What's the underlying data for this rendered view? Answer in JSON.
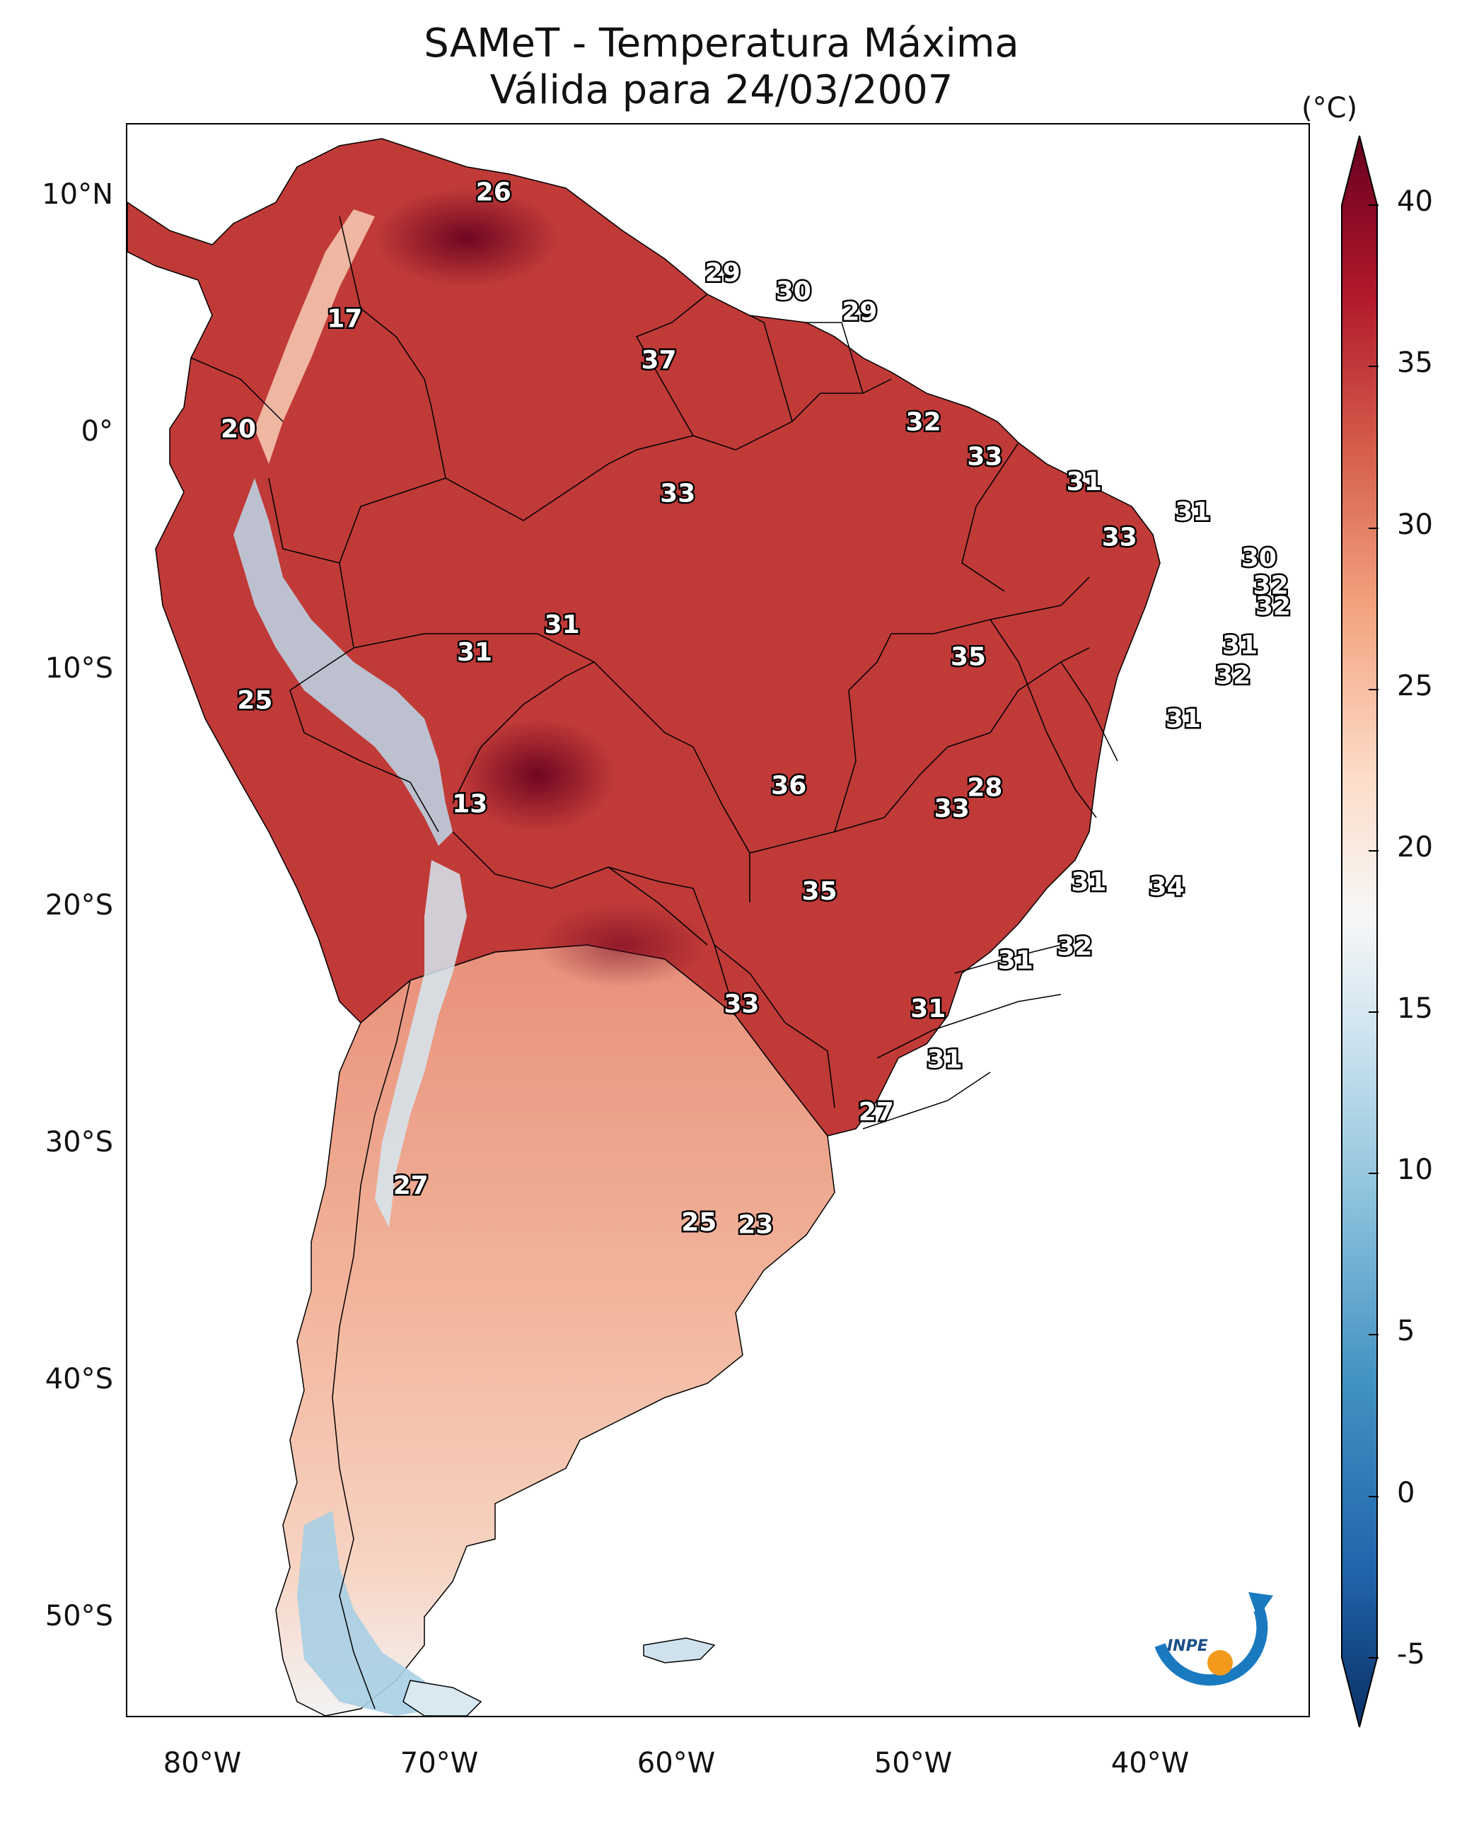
{
  "title": {
    "line1": "SAMeT - Temperatura Máxima",
    "line2": "Válida para 24/03/2007"
  },
  "axes": {
    "lat_labels": [
      "10°N",
      "0°",
      "10°S",
      "20°S",
      "30°S",
      "40°S",
      "50°S"
    ],
    "lon_labels": [
      "80°W",
      "70°W",
      "60°W",
      "50°W",
      "40°W"
    ]
  },
  "colorbar": {
    "unit": "(°C)",
    "ticks": [
      "40",
      "35",
      "30",
      "25",
      "20",
      "15",
      "10",
      "5",
      "0",
      "-5"
    ],
    "range": [
      -5,
      40
    ],
    "colors_low_to_high": [
      "#0a2f66",
      "#2166ac",
      "#4393c3",
      "#92c5de",
      "#d1e5f0",
      "#f7f7f7",
      "#fddbc7",
      "#f4a582",
      "#d6604d",
      "#b2182b",
      "#67001f"
    ]
  },
  "map_labels": [
    {
      "text": "26",
      "lon": -67.5,
      "lat": 10.0
    },
    {
      "text": "17",
      "lon": -73.8,
      "lat": 4.5
    },
    {
      "text": "29",
      "lon": -57.8,
      "lat": 6.5
    },
    {
      "text": "30",
      "lon": -54.8,
      "lat": 5.7
    },
    {
      "text": "29",
      "lon": -52.0,
      "lat": 4.8
    },
    {
      "text": "37",
      "lon": -60.5,
      "lat": 2.7
    },
    {
      "text": "20",
      "lon": -78.3,
      "lat": -0.3
    },
    {
      "text": "32",
      "lon": -49.3,
      "lat": 0.0
    },
    {
      "text": "33",
      "lon": -46.7,
      "lat": -1.5
    },
    {
      "text": "31",
      "lon": -42.5,
      "lat": -2.6
    },
    {
      "text": "33",
      "lon": -59.7,
      "lat": -3.1
    },
    {
      "text": "31",
      "lon": -37.9,
      "lat": -3.9
    },
    {
      "text": "33",
      "lon": -41.0,
      "lat": -5.0
    },
    {
      "text": "30",
      "lon": -35.1,
      "lat": -5.9
    },
    {
      "text": "32",
      "lon": -34.6,
      "lat": -7.1
    },
    {
      "text": "32",
      "lon": -34.5,
      "lat": -8.0
    },
    {
      "text": "31",
      "lon": -64.6,
      "lat": -8.8
    },
    {
      "text": "31",
      "lon": -35.9,
      "lat": -9.7
    },
    {
      "text": "31",
      "lon": -68.3,
      "lat": -10.0
    },
    {
      "text": "35",
      "lon": -47.4,
      "lat": -10.2
    },
    {
      "text": "32",
      "lon": -36.2,
      "lat": -11.0
    },
    {
      "text": "25",
      "lon": -77.6,
      "lat": -12.1
    },
    {
      "text": "31",
      "lon": -38.3,
      "lat": -12.9
    },
    {
      "text": "36",
      "lon": -55.0,
      "lat": -15.8
    },
    {
      "text": "28",
      "lon": -46.7,
      "lat": -15.9
    },
    {
      "text": "13",
      "lon": -68.5,
      "lat": -16.6
    },
    {
      "text": "33",
      "lon": -48.1,
      "lat": -16.8
    },
    {
      "text": "31",
      "lon": -42.3,
      "lat": -20.0
    },
    {
      "text": "35",
      "lon": -53.7,
      "lat": -20.4
    },
    {
      "text": "34",
      "lon": -39.0,
      "lat": -20.2
    },
    {
      "text": "32",
      "lon": -42.9,
      "lat": -22.8
    },
    {
      "text": "31",
      "lon": -45.4,
      "lat": -23.4
    },
    {
      "text": "33",
      "lon": -57.0,
      "lat": -25.3
    },
    {
      "text": "31",
      "lon": -49.1,
      "lat": -25.5
    },
    {
      "text": "31",
      "lon": -48.4,
      "lat": -27.7
    },
    {
      "text": "27",
      "lon": -51.3,
      "lat": -30.0
    },
    {
      "text": "27",
      "lon": -71.0,
      "lat": -33.2
    },
    {
      "text": "25",
      "lon": -58.8,
      "lat": -34.8
    },
    {
      "text": "23",
      "lon": -56.4,
      "lat": -34.9
    }
  ],
  "logo": {
    "text": "INPE"
  }
}
